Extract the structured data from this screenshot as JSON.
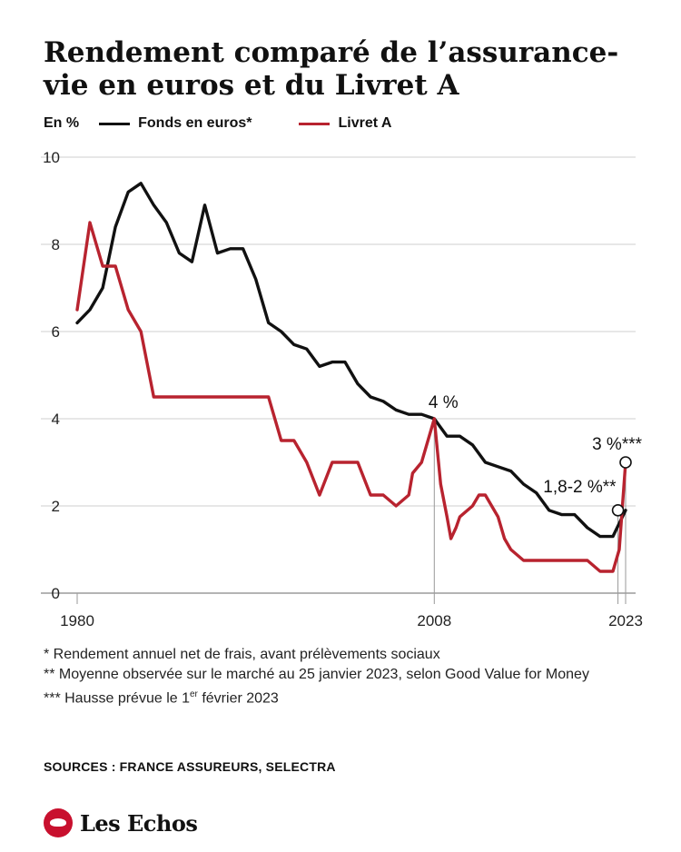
{
  "header": {
    "title": "Rendement comparé de l’assurance-vie en euros et du Livret A"
  },
  "legend": {
    "unit": "En %",
    "items": [
      {
        "label": "Fonds en euros*",
        "color": "#111111"
      },
      {
        "label": "Livret A",
        "color": "#b8232f"
      }
    ]
  },
  "chart_data": {
    "type": "line",
    "ylabel": "En %",
    "ylim": [
      0,
      10
    ],
    "yticks": [
      "0",
      "2",
      "4",
      "6",
      "8",
      "10"
    ],
    "xlim": [
      1980,
      2023.5
    ],
    "xticks": [
      {
        "value": 1980,
        "label": "1980"
      },
      {
        "value": 2008,
        "label": "2008"
      },
      {
        "value": 2023,
        "label": "2023"
      }
    ],
    "grid": true,
    "legend_position": "top-left",
    "series": [
      {
        "name": "Fonds en euros*",
        "color": "#111111",
        "x": [
          1980,
          1981,
          1982,
          1983,
          1984,
          1985,
          1986,
          1987,
          1988,
          1989,
          1990,
          1991,
          1992,
          1993,
          1994,
          1995,
          1996,
          1997,
          1998,
          1999,
          2000,
          2001,
          2002,
          2003,
          2004,
          2005,
          2006,
          2007,
          2008,
          2009,
          2010,
          2011,
          2012,
          2013,
          2014,
          2015,
          2016,
          2017,
          2018,
          2019,
          2020,
          2021,
          2022,
          2023
        ],
        "y": [
          6.2,
          6.5,
          7.0,
          8.4,
          9.2,
          9.4,
          8.9,
          8.5,
          7.8,
          7.6,
          8.9,
          7.8,
          7.9,
          7.9,
          7.2,
          6.2,
          6.0,
          5.7,
          5.6,
          5.2,
          5.3,
          5.3,
          4.8,
          4.5,
          4.4,
          4.2,
          4.1,
          4.1,
          4.0,
          3.6,
          3.6,
          3.4,
          3.0,
          2.9,
          2.8,
          2.5,
          2.3,
          1.9,
          1.8,
          1.8,
          1.5,
          1.3,
          1.3,
          1.9
        ]
      },
      {
        "name": "Livret A",
        "color": "#b8232f",
        "x": [
          1980,
          1981,
          1982,
          1983,
          1984,
          1985,
          1986,
          1986.3,
          1987,
          1988,
          1989,
          1990,
          1991,
          1992,
          1993,
          1994,
          1995,
          1996,
          1996.3,
          1997,
          1998,
          1999,
          2000,
          2001,
          2002,
          2003,
          2003.5,
          2004,
          2005,
          2006,
          2006.3,
          2007,
          2007.5,
          2008,
          2008.5,
          2009,
          2009.3,
          2009.7,
          2010,
          2011,
          2011.5,
          2012,
          2013,
          2013.5,
          2014,
          2015,
          2016,
          2017,
          2018,
          2019,
          2020,
          2021,
          2022,
          2022.5,
          2023
        ],
        "y": [
          6.5,
          8.5,
          7.5,
          7.5,
          6.5,
          6.0,
          4.5,
          4.5,
          4.5,
          4.5,
          4.5,
          4.5,
          4.5,
          4.5,
          4.5,
          4.5,
          4.5,
          3.5,
          3.5,
          3.5,
          3.0,
          2.25,
          3.0,
          3.0,
          3.0,
          2.25,
          2.25,
          2.25,
          2.0,
          2.25,
          2.75,
          3.0,
          3.5,
          4.0,
          2.5,
          1.75,
          1.25,
          1.5,
          1.75,
          2.0,
          2.25,
          2.25,
          1.75,
          1.25,
          1.0,
          0.75,
          0.75,
          0.75,
          0.75,
          0.75,
          0.75,
          0.5,
          0.5,
          1.0,
          3.0
        ]
      }
    ],
    "annotations": [
      {
        "text": "4 %",
        "x": 2008,
        "y": 4.0
      },
      {
        "text": "1,8-2 %**",
        "x": 2022.8,
        "y": 1.9
      },
      {
        "text": "3 %***",
        "x": 2023.5,
        "y": 3.0
      }
    ]
  },
  "footnotes": [
    "* Rendement annuel net de frais, avant prélèvements sociaux",
    "** Moyenne observée sur le marché au 25 janvier 2023, selon Good Value for Money",
    "*** Hausse prévue le 1er février 2023"
  ],
  "footnote3_parts": {
    "before": "*** Hausse prévue le 1",
    "sup": "er",
    "after": " février 2023"
  },
  "sources": "SOURCES : FRANCE ASSUREURS, SELECTRA",
  "brand": {
    "name": "Les Echos",
    "color": "#c8102e"
  }
}
